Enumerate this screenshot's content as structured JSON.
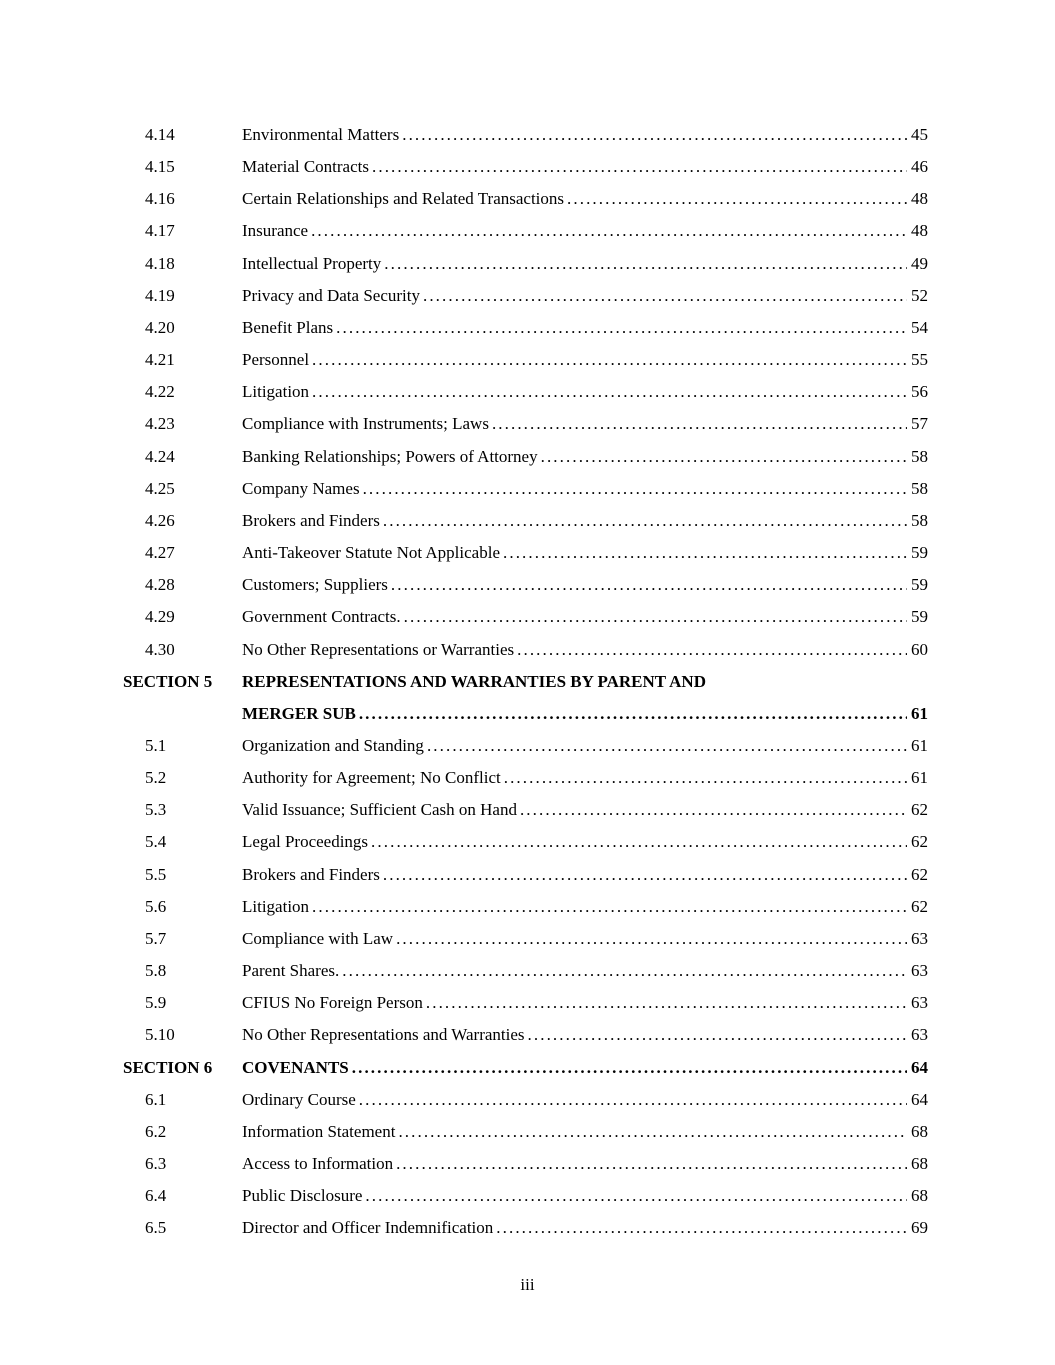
{
  "toc": {
    "entries": [
      {
        "type": "item",
        "num": "4.14",
        "title": "Environmental Matters",
        "page": "45"
      },
      {
        "type": "item",
        "num": "4.15",
        "title": "Material Contracts",
        "page": "46"
      },
      {
        "type": "item",
        "num": "4.16",
        "title": "Certain Relationships and Related Transactions",
        "page": "48"
      },
      {
        "type": "item",
        "num": "4.17",
        "title": "Insurance",
        "page": "48"
      },
      {
        "type": "item",
        "num": "4.18",
        "title": "Intellectual Property",
        "page": "49"
      },
      {
        "type": "item",
        "num": "4.19",
        "title": "Privacy and Data Security",
        "page": "52"
      },
      {
        "type": "item",
        "num": "4.20",
        "title": "Benefit Plans",
        "page": "54"
      },
      {
        "type": "item",
        "num": "4.21",
        "title": "Personnel",
        "page": "55"
      },
      {
        "type": "item",
        "num": "4.22",
        "title": "Litigation",
        "page": "56"
      },
      {
        "type": "item",
        "num": "4.23",
        "title": "Compliance with Instruments; Laws",
        "page": "57"
      },
      {
        "type": "item",
        "num": "4.24",
        "title": "Banking Relationships; Powers of Attorney",
        "page": "58"
      },
      {
        "type": "item",
        "num": "4.25",
        "title": "Company Names",
        "page": "58"
      },
      {
        "type": "item",
        "num": "4.26",
        "title": "Brokers and Finders",
        "page": "58"
      },
      {
        "type": "item",
        "num": "4.27",
        "title": "Anti-Takeover Statute Not Applicable",
        "page": "59"
      },
      {
        "type": "item",
        "num": "4.28",
        "title": "Customers; Suppliers",
        "page": "59"
      },
      {
        "type": "item",
        "num": "4.29",
        "title": "Government Contracts.",
        "page": "59"
      },
      {
        "type": "item",
        "num": "4.30",
        "title": "No Other Representations or Warranties",
        "page": "60"
      },
      {
        "type": "section",
        "label": "SECTION 5",
        "lines": [
          "REPRESENTATIONS AND WARRANTIES BY PARENT AND",
          "MERGER SUB"
        ],
        "page": "61"
      },
      {
        "type": "item",
        "num": "5.1",
        "title": "Organization and Standing",
        "page": "61"
      },
      {
        "type": "item",
        "num": "5.2",
        "title": "Authority for Agreement; No Conflict",
        "page": "61"
      },
      {
        "type": "item",
        "num": "5.3",
        "title": "Valid Issuance; Sufficient Cash on Hand",
        "page": "62"
      },
      {
        "type": "item",
        "num": "5.4",
        "title": "Legal Proceedings",
        "page": "62"
      },
      {
        "type": "item",
        "num": "5.5",
        "title": "Brokers and Finders",
        "page": "62"
      },
      {
        "type": "item",
        "num": "5.6",
        "title": "Litigation",
        "page": "62"
      },
      {
        "type": "item",
        "num": "5.7",
        "title": "Compliance with Law",
        "page": "63"
      },
      {
        "type": "item",
        "num": "5.8",
        "title": "Parent Shares.",
        "page": "63"
      },
      {
        "type": "item",
        "num": "5.9",
        "title": "CFIUS No Foreign Person",
        "page": "63"
      },
      {
        "type": "item",
        "num": "5.10",
        "title": "No Other Representations and Warranties",
        "page": "63"
      },
      {
        "type": "section",
        "label": "SECTION 6",
        "lines": [
          "COVENANTS"
        ],
        "page": "64"
      },
      {
        "type": "item",
        "num": "6.1",
        "title": "Ordinary Course",
        "page": "64"
      },
      {
        "type": "item",
        "num": "6.2",
        "title": "Information Statement",
        "page": "68"
      },
      {
        "type": "item",
        "num": "6.3",
        "title": "Access to Information",
        "page": "68"
      },
      {
        "type": "item",
        "num": "6.4",
        "title": "Public Disclosure",
        "page": "68"
      },
      {
        "type": "item",
        "num": "6.5",
        "title": "Director and Officer Indemnification",
        "page": "69"
      }
    ],
    "footer": {
      "page_number": "iii"
    }
  }
}
